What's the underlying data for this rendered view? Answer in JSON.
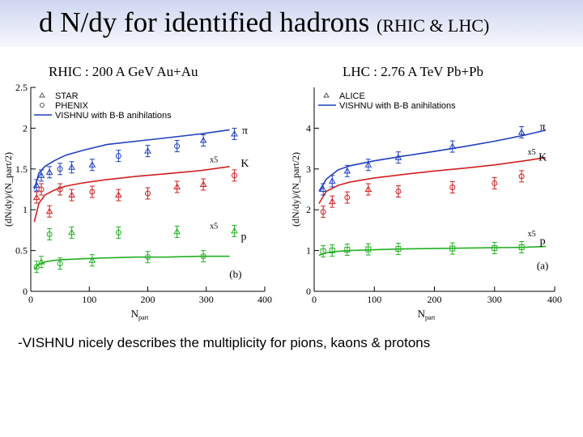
{
  "slide": {
    "title_main": "d N/dy for identified hadrons",
    "title_paren": "(RHIC & LHC)",
    "subtitle_rhic": "RHIC : 200 A GeV Au+Au",
    "subtitle_lhc": "LHC : 2.76 A TeV Pb+Pb",
    "bullet": "-VISHNU nicely describes the multiplicity for pions, kaons & protons"
  },
  "chart_data": [
    {
      "type": "scatter",
      "panel": "(b)",
      "xlabel": "N_part",
      "ylabel": "(dN/dy)/(N_part/2)",
      "xlim": [
        0,
        400
      ],
      "ylim": [
        0,
        2.5
      ],
      "xticks": [
        0,
        100,
        200,
        300,
        400
      ],
      "yticks": [
        0,
        0.5,
        1,
        1.5,
        2,
        2.5
      ],
      "legend": [
        "STAR",
        "PHENIX",
        "VISHNU with B-B anihilations"
      ],
      "labels": [
        {
          "text": "π",
          "x": 366,
          "y": 1.93
        },
        {
          "text": "K",
          "x": 366,
          "y": 1.53
        },
        {
          "text": "x5",
          "x": 313,
          "y": 1.58
        },
        {
          "text": "x5",
          "x": 313,
          "y": 0.77
        },
        {
          "text": "p",
          "x": 364,
          "y": 0.63
        },
        {
          "text": "(b)",
          "x": 350,
          "y": 0.17
        }
      ],
      "series": [
        {
          "name": "VISHNU with B-B anihilations",
          "color": "#1f3fbf",
          "x": [
            6,
            14,
            24,
            40,
            60,
            90,
            130,
            180,
            230,
            290,
            340
          ],
          "y": [
            1.25,
            1.45,
            1.53,
            1.6,
            1.67,
            1.73,
            1.8,
            1.84,
            1.88,
            1.93,
            1.98
          ]
        },
        {
          "name": "",
          "color": "#d02020",
          "x": [
            6,
            14,
            24,
            40,
            60,
            90,
            130,
            180,
            230,
            290,
            340
          ],
          "y": [
            0.85,
            1.08,
            1.18,
            1.24,
            1.29,
            1.33,
            1.37,
            1.41,
            1.44,
            1.48,
            1.53
          ]
        },
        {
          "name": "",
          "color": "#20b020",
          "x": [
            6,
            14,
            24,
            40,
            60,
            90,
            130,
            180,
            230,
            290,
            340
          ],
          "y": [
            0.27,
            0.33,
            0.36,
            0.38,
            0.39,
            0.4,
            0.41,
            0.42,
            0.42,
            0.43,
            0.43
          ]
        }
      ],
      "points": [
        {
          "x": 10,
          "y": 1.3,
          "marker": "triangle",
          "color": "#1f3fbf"
        },
        {
          "x": 18,
          "y": 1.42,
          "marker": "triangle",
          "color": "#1f3fbf"
        },
        {
          "x": 32,
          "y": 1.46,
          "marker": "triangle",
          "color": "#1f3fbf"
        },
        {
          "x": 50,
          "y": 1.5,
          "marker": "circle",
          "color": "#1f3fbf"
        },
        {
          "x": 70,
          "y": 1.52,
          "marker": "triangle",
          "color": "#1f3fbf"
        },
        {
          "x": 105,
          "y": 1.55,
          "marker": "triangle",
          "color": "#1f3fbf"
        },
        {
          "x": 150,
          "y": 1.66,
          "marker": "circle",
          "color": "#1f3fbf"
        },
        {
          "x": 200,
          "y": 1.72,
          "marker": "triangle",
          "color": "#1f3fbf"
        },
        {
          "x": 250,
          "y": 1.78,
          "marker": "circle",
          "color": "#1f3fbf"
        },
        {
          "x": 295,
          "y": 1.85,
          "marker": "triangle",
          "color": "#1f3fbf"
        },
        {
          "x": 348,
          "y": 1.93,
          "marker": "triangle",
          "color": "#1f3fbf"
        },
        {
          "x": 10,
          "y": 1.15,
          "marker": "triangle",
          "color": "#d02020"
        },
        {
          "x": 18,
          "y": 1.25,
          "marker": "circle",
          "color": "#d02020"
        },
        {
          "x": 32,
          "y": 0.98,
          "marker": "triangle",
          "color": "#d02020"
        },
        {
          "x": 50,
          "y": 1.25,
          "marker": "circle",
          "color": "#d02020"
        },
        {
          "x": 70,
          "y": 1.18,
          "marker": "triangle",
          "color": "#d02020"
        },
        {
          "x": 105,
          "y": 1.22,
          "marker": "circle",
          "color": "#d02020"
        },
        {
          "x": 150,
          "y": 1.18,
          "marker": "triangle",
          "color": "#d02020"
        },
        {
          "x": 200,
          "y": 1.2,
          "marker": "circle",
          "color": "#d02020"
        },
        {
          "x": 250,
          "y": 1.28,
          "marker": "triangle",
          "color": "#d02020"
        },
        {
          "x": 295,
          "y": 1.31,
          "marker": "triangle",
          "color": "#d02020"
        },
        {
          "x": 348,
          "y": 1.42,
          "marker": "circle",
          "color": "#d02020"
        },
        {
          "x": 10,
          "y": 0.3,
          "marker": "circle",
          "color": "#20b020"
        },
        {
          "x": 18,
          "y": 0.36,
          "marker": "triangle",
          "color": "#20b020"
        },
        {
          "x": 32,
          "y": 0.7,
          "marker": "circle",
          "color": "#20b020"
        },
        {
          "x": 50,
          "y": 0.34,
          "marker": "circle",
          "color": "#20b020"
        },
        {
          "x": 70,
          "y": 0.72,
          "marker": "triangle",
          "color": "#20b020"
        },
        {
          "x": 105,
          "y": 0.38,
          "marker": "triangle",
          "color": "#20b020"
        },
        {
          "x": 150,
          "y": 0.72,
          "marker": "circle",
          "color": "#20b020"
        },
        {
          "x": 200,
          "y": 0.42,
          "marker": "circle",
          "color": "#20b020"
        },
        {
          "x": 250,
          "y": 0.73,
          "marker": "triangle",
          "color": "#20b020"
        },
        {
          "x": 295,
          "y": 0.43,
          "marker": "circle",
          "color": "#20b020"
        },
        {
          "x": 348,
          "y": 0.74,
          "marker": "triangle",
          "color": "#20b020"
        }
      ]
    },
    {
      "type": "scatter",
      "panel": "(a)",
      "xlabel": "N_part",
      "ylabel": "(dN/dy)/(N_part/2)",
      "xlim": [
        0,
        400
      ],
      "ylim": [
        0,
        5
      ],
      "xticks": [
        0,
        100,
        200,
        300,
        400
      ],
      "yticks": [
        0,
        1,
        2,
        3,
        4
      ],
      "legend": [
        "ALICE",
        "VISHNU with B-B anihilations"
      ],
      "labels": [
        {
          "text": "π",
          "x": 380,
          "y": 3.95
        },
        {
          "text": "K",
          "x": 380,
          "y": 3.2
        },
        {
          "text": "x5",
          "x": 362,
          "y": 3.35
        },
        {
          "text": "x5",
          "x": 362,
          "y": 1.35
        },
        {
          "text": "p",
          "x": 380,
          "y": 1.15
        },
        {
          "text": "(a)",
          "x": 380,
          "y": 0.55
        }
      ],
      "series": [
        {
          "name": "VISHNU with B-B anihilations",
          "color": "#1f3fbf",
          "x": [
            8,
            20,
            40,
            60,
            100,
            150,
            200,
            250,
            300,
            350,
            385
          ],
          "y": [
            2.45,
            2.75,
            2.98,
            3.08,
            3.2,
            3.32,
            3.43,
            3.55,
            3.68,
            3.83,
            3.95
          ]
        },
        {
          "name": "",
          "color": "#d02020",
          "x": [
            8,
            20,
            40,
            60,
            100,
            150,
            200,
            250,
            300,
            350,
            385
          ],
          "y": [
            2.15,
            2.45,
            2.6,
            2.68,
            2.78,
            2.87,
            2.95,
            3.02,
            3.1,
            3.2,
            3.28
          ]
        },
        {
          "name": "",
          "color": "#20b020",
          "x": [
            8,
            20,
            40,
            60,
            100,
            150,
            200,
            250,
            300,
            350,
            385
          ],
          "y": [
            0.88,
            0.95,
            0.98,
            1.0,
            1.02,
            1.04,
            1.05,
            1.06,
            1.07,
            1.08,
            1.1
          ]
        }
      ],
      "points": [
        {
          "x": 15,
          "y": 2.5,
          "marker": "triangle",
          "color": "#1f3fbf"
        },
        {
          "x": 30,
          "y": 2.7,
          "marker": "triangle",
          "color": "#1f3fbf"
        },
        {
          "x": 55,
          "y": 2.95,
          "marker": "triangle",
          "color": "#1f3fbf"
        },
        {
          "x": 90,
          "y": 3.1,
          "marker": "triangle",
          "color": "#1f3fbf"
        },
        {
          "x": 140,
          "y": 3.28,
          "marker": "triangle",
          "color": "#1f3fbf"
        },
        {
          "x": 230,
          "y": 3.55,
          "marker": "triangle",
          "color": "#1f3fbf"
        },
        {
          "x": 345,
          "y": 3.9,
          "marker": "triangle",
          "color": "#1f3fbf"
        },
        {
          "x": 15,
          "y": 1.95,
          "marker": "circle",
          "color": "#d02020"
        },
        {
          "x": 30,
          "y": 2.2,
          "marker": "triangle",
          "color": "#d02020"
        },
        {
          "x": 55,
          "y": 2.3,
          "marker": "circle",
          "color": "#d02020"
        },
        {
          "x": 90,
          "y": 2.5,
          "marker": "triangle",
          "color": "#d02020"
        },
        {
          "x": 140,
          "y": 2.45,
          "marker": "circle",
          "color": "#d02020"
        },
        {
          "x": 230,
          "y": 2.55,
          "marker": "circle",
          "color": "#d02020"
        },
        {
          "x": 300,
          "y": 2.65,
          "marker": "circle",
          "color": "#d02020"
        },
        {
          "x": 345,
          "y": 2.82,
          "marker": "circle",
          "color": "#d02020"
        },
        {
          "x": 15,
          "y": 0.98,
          "marker": "square",
          "color": "#20b020"
        },
        {
          "x": 30,
          "y": 1.0,
          "marker": "square",
          "color": "#20b020"
        },
        {
          "x": 55,
          "y": 1.02,
          "marker": "square",
          "color": "#20b020"
        },
        {
          "x": 90,
          "y": 1.03,
          "marker": "square",
          "color": "#20b020"
        },
        {
          "x": 140,
          "y": 1.04,
          "marker": "square",
          "color": "#20b020"
        },
        {
          "x": 230,
          "y": 1.05,
          "marker": "square",
          "color": "#20b020"
        },
        {
          "x": 300,
          "y": 1.06,
          "marker": "square",
          "color": "#20b020"
        },
        {
          "x": 345,
          "y": 1.08,
          "marker": "square",
          "color": "#20b020"
        }
      ]
    }
  ]
}
